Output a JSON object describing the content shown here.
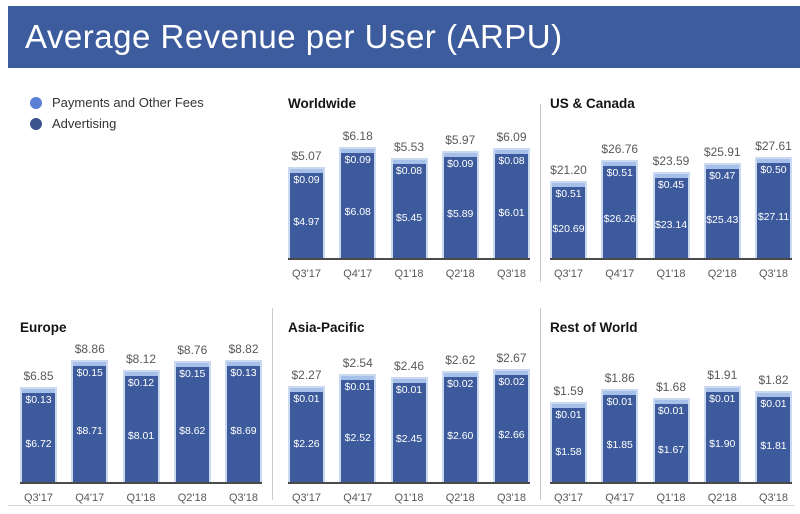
{
  "header": {
    "title": "Average Revenue per User (ARPU)"
  },
  "legend": {
    "items": [
      {
        "label": "Payments and Other Fees",
        "color": "#5b7fd4"
      },
      {
        "label": "Advertising",
        "color": "#39548f"
      }
    ]
  },
  "colors": {
    "header_bg": "#3d5c9e",
    "bar_fill": "#3d5b9c",
    "bar_cap": "#a6c0ea",
    "bar_border": "#ccdaf1",
    "axis": "#4a4a4a",
    "label_gray": "#595959"
  },
  "chart_data": [
    {
      "type": "bar",
      "stacked": true,
      "title": "Worldwide",
      "categories": [
        "Q3'17",
        "Q4'17",
        "Q1'18",
        "Q2'18",
        "Q3'18"
      ],
      "totals": [
        5.07,
        6.18,
        5.53,
        5.97,
        6.09
      ],
      "total_labels": [
        "$5.07",
        "$6.18",
        "$5.53",
        "$5.97",
        "$6.09"
      ],
      "series": [
        {
          "name": "Advertising",
          "values": [
            4.97,
            6.08,
            5.45,
            5.89,
            6.01
          ],
          "labels": [
            "$4.97",
            "$6.08",
            "$5.45",
            "$5.89",
            "$6.01"
          ]
        },
        {
          "name": "Payments and Other Fees",
          "values": [
            0.09,
            0.09,
            0.08,
            0.09,
            0.08
          ],
          "labels": [
            "$0.09",
            "$0.09",
            "$0.08",
            "$0.09",
            "$0.08"
          ]
        }
      ]
    },
    {
      "type": "bar",
      "stacked": true,
      "title": "US & Canada",
      "categories": [
        "Q3'17",
        "Q4'17",
        "Q1'18",
        "Q2'18",
        "Q3'18"
      ],
      "totals": [
        21.2,
        26.76,
        23.59,
        25.91,
        27.61
      ],
      "total_labels": [
        "$21.20",
        "$26.76",
        "$23.59",
        "$25.91",
        "$27.61"
      ],
      "series": [
        {
          "name": "Advertising",
          "values": [
            20.69,
            26.26,
            23.14,
            25.43,
            27.11
          ],
          "labels": [
            "$20.69",
            "$26.26",
            "$23.14",
            "$25.43",
            "$27.11"
          ]
        },
        {
          "name": "Payments and Other Fees",
          "values": [
            0.51,
            0.51,
            0.45,
            0.47,
            0.5
          ],
          "labels": [
            "$0.51",
            "$0.51",
            "$0.45",
            "$0.47",
            "$0.50"
          ]
        }
      ]
    },
    {
      "type": "bar",
      "stacked": true,
      "title": "Europe",
      "categories": [
        "Q3'17",
        "Q4'17",
        "Q1'18",
        "Q2'18",
        "Q3'18"
      ],
      "totals": [
        6.85,
        8.86,
        8.12,
        8.76,
        8.82
      ],
      "total_labels": [
        "$6.85",
        "$8.86",
        "$8.12",
        "$8.76",
        "$8.82"
      ],
      "series": [
        {
          "name": "Advertising",
          "values": [
            6.72,
            8.71,
            8.01,
            8.62,
            8.69
          ],
          "labels": [
            "$6.72",
            "$8.71",
            "$8.01",
            "$8.62",
            "$8.69"
          ]
        },
        {
          "name": "Payments and Other Fees",
          "values": [
            0.13,
            0.15,
            0.12,
            0.15,
            0.13
          ],
          "labels": [
            "$0.13",
            "$0.15",
            "$0.12",
            "$0.15",
            "$0.13"
          ]
        }
      ]
    },
    {
      "type": "bar",
      "stacked": true,
      "title": "Asia-Pacific",
      "categories": [
        "Q3'17",
        "Q4'17",
        "Q1'18",
        "Q2'18",
        "Q3'18"
      ],
      "totals": [
        2.27,
        2.54,
        2.46,
        2.62,
        2.67
      ],
      "total_labels": [
        "$2.27",
        "$2.54",
        "$2.46",
        "$2.62",
        "$2.67"
      ],
      "series": [
        {
          "name": "Advertising",
          "values": [
            2.26,
            2.52,
            2.45,
            2.6,
            2.66
          ],
          "labels": [
            "$2.26",
            "$2.52",
            "$2.45",
            "$2.60",
            "$2.66"
          ]
        },
        {
          "name": "Payments and Other Fees",
          "values": [
            0.01,
            0.01,
            0.01,
            0.02,
            0.02
          ],
          "labels": [
            "$0.01",
            "$0.01",
            "$0.01",
            "$0.02",
            "$0.02"
          ]
        }
      ]
    },
    {
      "type": "bar",
      "stacked": true,
      "title": "Rest of World",
      "categories": [
        "Q3'17",
        "Q4'17",
        "Q1'18",
        "Q2'18",
        "Q3'18"
      ],
      "totals": [
        1.59,
        1.86,
        1.68,
        1.91,
        1.82
      ],
      "total_labels": [
        "$1.59",
        "$1.86",
        "$1.68",
        "$1.91",
        "$1.82"
      ],
      "series": [
        {
          "name": "Advertising",
          "values": [
            1.58,
            1.85,
            1.67,
            1.9,
            1.81
          ],
          "labels": [
            "$1.58",
            "$1.85",
            "$1.67",
            "$1.90",
            "$1.81"
          ]
        },
        {
          "name": "Payments and Other Fees",
          "values": [
            0.01,
            0.01,
            0.01,
            0.01,
            0.01
          ],
          "labels": [
            "$0.01",
            "$0.01",
            "$0.01",
            "$0.01",
            "$0.01"
          ]
        }
      ]
    }
  ]
}
